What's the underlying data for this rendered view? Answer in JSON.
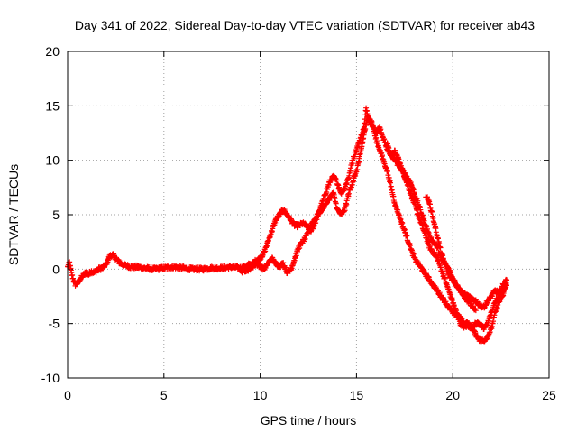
{
  "chart_data": {
    "type": "scatter",
    "title": "Day 341 of 2022, Sidereal Day-to-day VTEC variation (SDTVAR) for receiver ab43",
    "xlabel": "GPS time / hours",
    "ylabel": "SDTVAR / TECUs",
    "xlim": [
      0,
      25
    ],
    "ylim": [
      -10,
      20
    ],
    "xticks": [
      0,
      5,
      10,
      15,
      20,
      25
    ],
    "yticks": [
      -10,
      -5,
      0,
      5,
      10,
      15,
      20
    ],
    "xtick_labels": [
      "0",
      "5",
      "10",
      "15",
      "20",
      "25"
    ],
    "ytick_labels": [
      "-10",
      "-5",
      "0",
      "5",
      "10",
      "15",
      "20"
    ],
    "grid": true,
    "marker": "+",
    "series": [
      {
        "name": "SDTVAR",
        "color": "#ff0000",
        "trace_a": [
          [
            0.0,
            0.2
          ],
          [
            0.1,
            0.6
          ],
          [
            0.2,
            -0.4
          ],
          [
            0.3,
            -1.0
          ],
          [
            0.4,
            -1.4
          ],
          [
            0.5,
            -1.3
          ],
          [
            0.6,
            -1.1
          ],
          [
            0.7,
            -0.8
          ],
          [
            0.8,
            -0.6
          ],
          [
            0.9,
            -0.4
          ],
          [
            1.0,
            -0.3
          ],
          [
            1.1,
            -0.5
          ],
          [
            1.2,
            -0.2
          ],
          [
            1.4,
            -0.3
          ],
          [
            1.6,
            0.0
          ],
          [
            1.8,
            0.1
          ],
          [
            2.0,
            0.4
          ],
          [
            2.1,
            0.9
          ],
          [
            2.2,
            1.2
          ],
          [
            2.35,
            1.3
          ],
          [
            2.5,
            1.0
          ],
          [
            2.7,
            0.6
          ],
          [
            2.9,
            0.4
          ],
          [
            3.1,
            0.3
          ],
          [
            3.3,
            0.2
          ],
          [
            3.6,
            0.2
          ],
          [
            4.0,
            0.1
          ],
          [
            4.5,
            0.0
          ],
          [
            5.0,
            0.1
          ],
          [
            5.5,
            0.2
          ],
          [
            6.0,
            0.1
          ],
          [
            6.5,
            0.0
          ],
          [
            7.0,
            0.0
          ],
          [
            7.5,
            0.1
          ],
          [
            8.0,
            0.1
          ],
          [
            8.5,
            0.2
          ],
          [
            9.0,
            0.1
          ],
          [
            9.2,
            0.2
          ],
          [
            9.4,
            0.4
          ],
          [
            9.6,
            0.5
          ],
          [
            9.8,
            0.8
          ],
          [
            10.0,
            1.0
          ],
          [
            10.2,
            1.5
          ],
          [
            10.4,
            2.5
          ],
          [
            10.6,
            3.5
          ],
          [
            10.8,
            4.5
          ],
          [
            11.0,
            5.0
          ],
          [
            11.2,
            5.5
          ],
          [
            11.4,
            5.0
          ],
          [
            11.6,
            4.5
          ],
          [
            11.8,
            4.0
          ],
          [
            12.0,
            4.0
          ],
          [
            12.2,
            4.2
          ],
          [
            12.4,
            4.0
          ],
          [
            12.6,
            3.5
          ],
          [
            12.8,
            4.0
          ],
          [
            13.0,
            5.0
          ],
          [
            13.2,
            6.0
          ],
          [
            13.4,
            7.0
          ],
          [
            13.6,
            8.0
          ],
          [
            13.8,
            8.5
          ],
          [
            14.0,
            8.0
          ],
          [
            14.2,
            7.0
          ],
          [
            14.4,
            7.5
          ],
          [
            14.6,
            8.5
          ],
          [
            14.8,
            10.0
          ],
          [
            15.0,
            11.0
          ],
          [
            15.2,
            12.0
          ],
          [
            15.4,
            13.0
          ],
          [
            15.5,
            14.8
          ],
          [
            15.7,
            13.5
          ],
          [
            15.9,
            13.0
          ],
          [
            16.0,
            12.5
          ],
          [
            16.2,
            13.0
          ],
          [
            16.4,
            12.0
          ],
          [
            16.6,
            11.0
          ],
          [
            16.8,
            10.5
          ],
          [
            17.0,
            10.0
          ],
          [
            17.2,
            9.5
          ],
          [
            17.4,
            9.0
          ],
          [
            17.6,
            8.0
          ],
          [
            17.8,
            7.0
          ],
          [
            18.0,
            6.0
          ],
          [
            18.2,
            5.0
          ],
          [
            18.4,
            4.0
          ],
          [
            18.6,
            3.0
          ],
          [
            18.8,
            2.0
          ],
          [
            19.0,
            1.5
          ],
          [
            19.2,
            1.0
          ],
          [
            19.4,
            0.0
          ],
          [
            19.6,
            -1.0
          ],
          [
            19.8,
            -2.0
          ],
          [
            20.0,
            -3.0
          ],
          [
            20.2,
            -4.0
          ],
          [
            20.4,
            -5.0
          ],
          [
            20.6,
            -5.3
          ],
          [
            20.8,
            -5.2
          ],
          [
            21.0,
            -5.3
          ],
          [
            21.2,
            -5.0
          ],
          [
            21.4,
            -5.0
          ],
          [
            21.6,
            -5.5
          ],
          [
            21.8,
            -5.0
          ],
          [
            22.0,
            -4.0
          ],
          [
            22.2,
            -3.0
          ],
          [
            22.4,
            -2.5
          ],
          [
            22.6,
            -2.0
          ],
          [
            22.8,
            -1.5
          ]
        ],
        "trace_b": [
          [
            9.0,
            -0.2
          ],
          [
            9.4,
            0.0
          ],
          [
            9.8,
            0.5
          ],
          [
            10.2,
            0.0
          ],
          [
            10.4,
            0.5
          ],
          [
            10.6,
            1.0
          ],
          [
            10.8,
            0.5
          ],
          [
            11.0,
            0.3
          ],
          [
            11.2,
            0.5
          ],
          [
            11.4,
            -0.3
          ],
          [
            11.6,
            0.0
          ],
          [
            11.8,
            1.0
          ],
          [
            12.0,
            2.0
          ],
          [
            12.2,
            2.5
          ],
          [
            12.4,
            3.0
          ],
          [
            12.6,
            4.0
          ],
          [
            12.8,
            4.5
          ],
          [
            13.0,
            5.0
          ],
          [
            13.2,
            5.5
          ],
          [
            13.4,
            6.0
          ],
          [
            13.6,
            6.5
          ],
          [
            13.8,
            7.0
          ],
          [
            14.0,
            5.5
          ],
          [
            14.2,
            5.0
          ],
          [
            14.4,
            5.5
          ],
          [
            14.6,
            7.0
          ],
          [
            14.8,
            8.0
          ],
          [
            15.0,
            9.0
          ],
          [
            15.2,
            10.5
          ],
          [
            15.4,
            12.5
          ],
          [
            15.6,
            14.0
          ],
          [
            15.8,
            13.5
          ],
          [
            16.0,
            12.0
          ],
          [
            16.2,
            11.0
          ],
          [
            16.4,
            10.0
          ],
          [
            16.6,
            9.0
          ],
          [
            16.8,
            7.5
          ],
          [
            17.0,
            6.0
          ],
          [
            17.2,
            5.0
          ],
          [
            17.4,
            4.0
          ],
          [
            17.6,
            3.0
          ],
          [
            17.8,
            2.0
          ],
          [
            18.0,
            1.0
          ],
          [
            18.2,
            0.5
          ],
          [
            18.4,
            0.0
          ],
          [
            18.6,
            -0.5
          ],
          [
            18.8,
            -1.0
          ],
          [
            19.0,
            -1.5
          ],
          [
            19.2,
            -2.0
          ],
          [
            19.4,
            -2.5
          ],
          [
            19.6,
            -3.0
          ],
          [
            19.8,
            -3.5
          ],
          [
            20.0,
            -4.0
          ],
          [
            20.2,
            -4.2
          ],
          [
            20.4,
            -4.5
          ],
          [
            20.6,
            -5.0
          ],
          [
            20.8,
            -5.0
          ],
          [
            21.0,
            -5.5
          ],
          [
            21.2,
            -6.0
          ],
          [
            21.4,
            -6.5
          ],
          [
            21.6,
            -6.6
          ],
          [
            21.8,
            -6.2
          ],
          [
            22.0,
            -5.5
          ],
          [
            22.2,
            -4.0
          ],
          [
            22.4,
            -3.0
          ],
          [
            22.6,
            -2.5
          ],
          [
            22.8,
            -1.0
          ]
        ],
        "trace_c": [
          [
            16.6,
            11.5
          ],
          [
            16.8,
            10.5
          ],
          [
            17.0,
            10.8
          ],
          [
            17.2,
            10.0
          ],
          [
            17.4,
            9.0
          ],
          [
            17.6,
            8.5
          ],
          [
            17.8,
            8.0
          ],
          [
            18.0,
            7.0
          ],
          [
            18.2,
            6.0
          ],
          [
            18.4,
            5.0
          ],
          [
            18.6,
            4.0
          ],
          [
            18.8,
            3.0
          ],
          [
            19.0,
            2.5
          ],
          [
            19.2,
            2.0
          ],
          [
            19.4,
            1.0
          ],
          [
            19.6,
            0.5
          ],
          [
            19.8,
            0.0
          ],
          [
            20.0,
            -0.8
          ],
          [
            20.2,
            -1.5
          ],
          [
            20.4,
            -2.0
          ],
          [
            20.6,
            -2.3
          ],
          [
            20.8,
            -2.5
          ],
          [
            21.0,
            -2.8
          ],
          [
            21.2,
            -3.0
          ],
          [
            21.4,
            -3.3
          ],
          [
            21.6,
            -3.5
          ],
          [
            21.8,
            -3.0
          ],
          [
            22.0,
            -2.5
          ],
          [
            22.2,
            -2.0
          ],
          [
            22.4,
            -2.2
          ],
          [
            22.6,
            -1.5
          ],
          [
            22.8,
            -1.0
          ]
        ],
        "trace_d": [
          [
            18.6,
            6.8
          ],
          [
            18.8,
            6.0
          ],
          [
            19.0,
            4.5
          ],
          [
            19.2,
            3.0
          ],
          [
            19.4,
            1.5
          ],
          [
            19.6,
            0.5
          ],
          [
            19.8,
            -0.5
          ],
          [
            20.0,
            -1.0
          ],
          [
            20.2,
            -1.5
          ],
          [
            20.4,
            -2.0
          ],
          [
            20.6,
            -2.5
          ],
          [
            20.8,
            -3.0
          ],
          [
            21.0,
            -3.3
          ],
          [
            21.2,
            -3.8
          ]
        ]
      }
    ]
  }
}
